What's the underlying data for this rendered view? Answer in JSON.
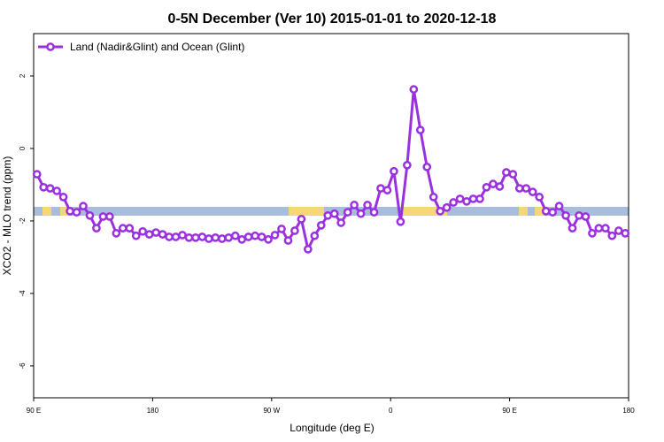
{
  "chart_data": {
    "type": "line",
    "title": "0-5N December (Ver 10)   2015-01-01 to 2020-12-18",
    "x_label": "Longitude (deg E)",
    "y_label": "XCO2 - MLO trend (ppm)",
    "legend_position": "upper left",
    "xlim": [
      90,
      540
    ],
    "ylim": [
      -6.88,
      3.17
    ],
    "xticks": [
      {
        "value": 90,
        "label": "90 E"
      },
      {
        "value": 180,
        "label": "180"
      },
      {
        "value": 270,
        "label": "90 W"
      },
      {
        "value": 360,
        "label": "0"
      },
      {
        "value": 450,
        "label": "90 E"
      },
      {
        "value": 540,
        "label": "180"
      }
    ],
    "yticks": [
      -6,
      -4,
      -2,
      0,
      2
    ],
    "x": [
      92.5,
      97.5,
      102.5,
      107.5,
      112.5,
      117.5,
      122.5,
      127.5,
      132.5,
      137.5,
      142.5,
      147.5,
      152.5,
      157.5,
      162.5,
      167.5,
      172.5,
      177.5,
      182.5,
      187.5,
      192.5,
      197.5,
      202.5,
      207.5,
      212.5,
      217.5,
      222.5,
      227.5,
      232.5,
      237.5,
      242.5,
      247.5,
      252.5,
      257.5,
      262.5,
      267.5,
      272.5,
      277.5,
      282.5,
      287.5,
      292.5,
      297.5,
      302.5,
      307.5,
      312.5,
      317.5,
      322.5,
      327.5,
      332.5,
      337.5,
      342.5,
      347.5,
      352.5,
      357.5,
      362.5,
      367.5,
      372.5,
      377.5,
      382.5,
      387.5,
      392.5,
      397.5,
      402.5,
      407.5,
      412.5,
      417.5,
      422.5,
      427.5,
      432.5,
      437.5,
      442.5,
      447.5,
      452.5,
      457.5,
      462.5,
      467.5,
      472.5,
      477.5,
      482.5,
      487.5,
      492.5,
      497.5,
      502.5,
      507.5,
      512.5,
      517.5,
      522.5,
      527.5,
      532.5,
      537.5
    ],
    "series": [
      {
        "name": "Land (Nadir&Glint) and Ocean (Glint)",
        "color": "#9b30e0",
        "values": [
          -0.71,
          -1.07,
          -1.1,
          -1.17,
          -1.34,
          -1.73,
          -1.76,
          -1.59,
          -1.85,
          -2.2,
          -1.88,
          -1.88,
          -2.34,
          -2.2,
          -2.2,
          -2.41,
          -2.29,
          -2.37,
          -2.32,
          -2.37,
          -2.44,
          -2.44,
          -2.39,
          -2.46,
          -2.46,
          -2.44,
          -2.49,
          -2.46,
          -2.49,
          -2.46,
          -2.41,
          -2.51,
          -2.44,
          -2.41,
          -2.44,
          -2.51,
          -2.39,
          -2.22,
          -2.54,
          -2.27,
          -1.95,
          -2.78,
          -2.41,
          -2.12,
          -1.85,
          -1.8,
          -2.05,
          -1.76,
          -1.56,
          -1.8,
          -1.56,
          -1.76,
          -1.1,
          -1.15,
          -0.63,
          -2.02,
          -0.46,
          1.63,
          0.51,
          -0.51,
          -1.34,
          -1.73,
          -1.63,
          -1.49,
          -1.39,
          -1.46,
          -1.39,
          -1.39,
          -1.07,
          -0.98,
          -1.05,
          -0.66,
          -0.71,
          -1.1,
          -1.1,
          -1.2,
          -1.34,
          -1.73,
          -1.76,
          -1.59,
          -1.85,
          -2.2,
          -1.85,
          -1.88,
          -2.34,
          -2.2,
          -2.2,
          -2.41,
          -2.27,
          -2.34
        ]
      }
    ]
  }
}
